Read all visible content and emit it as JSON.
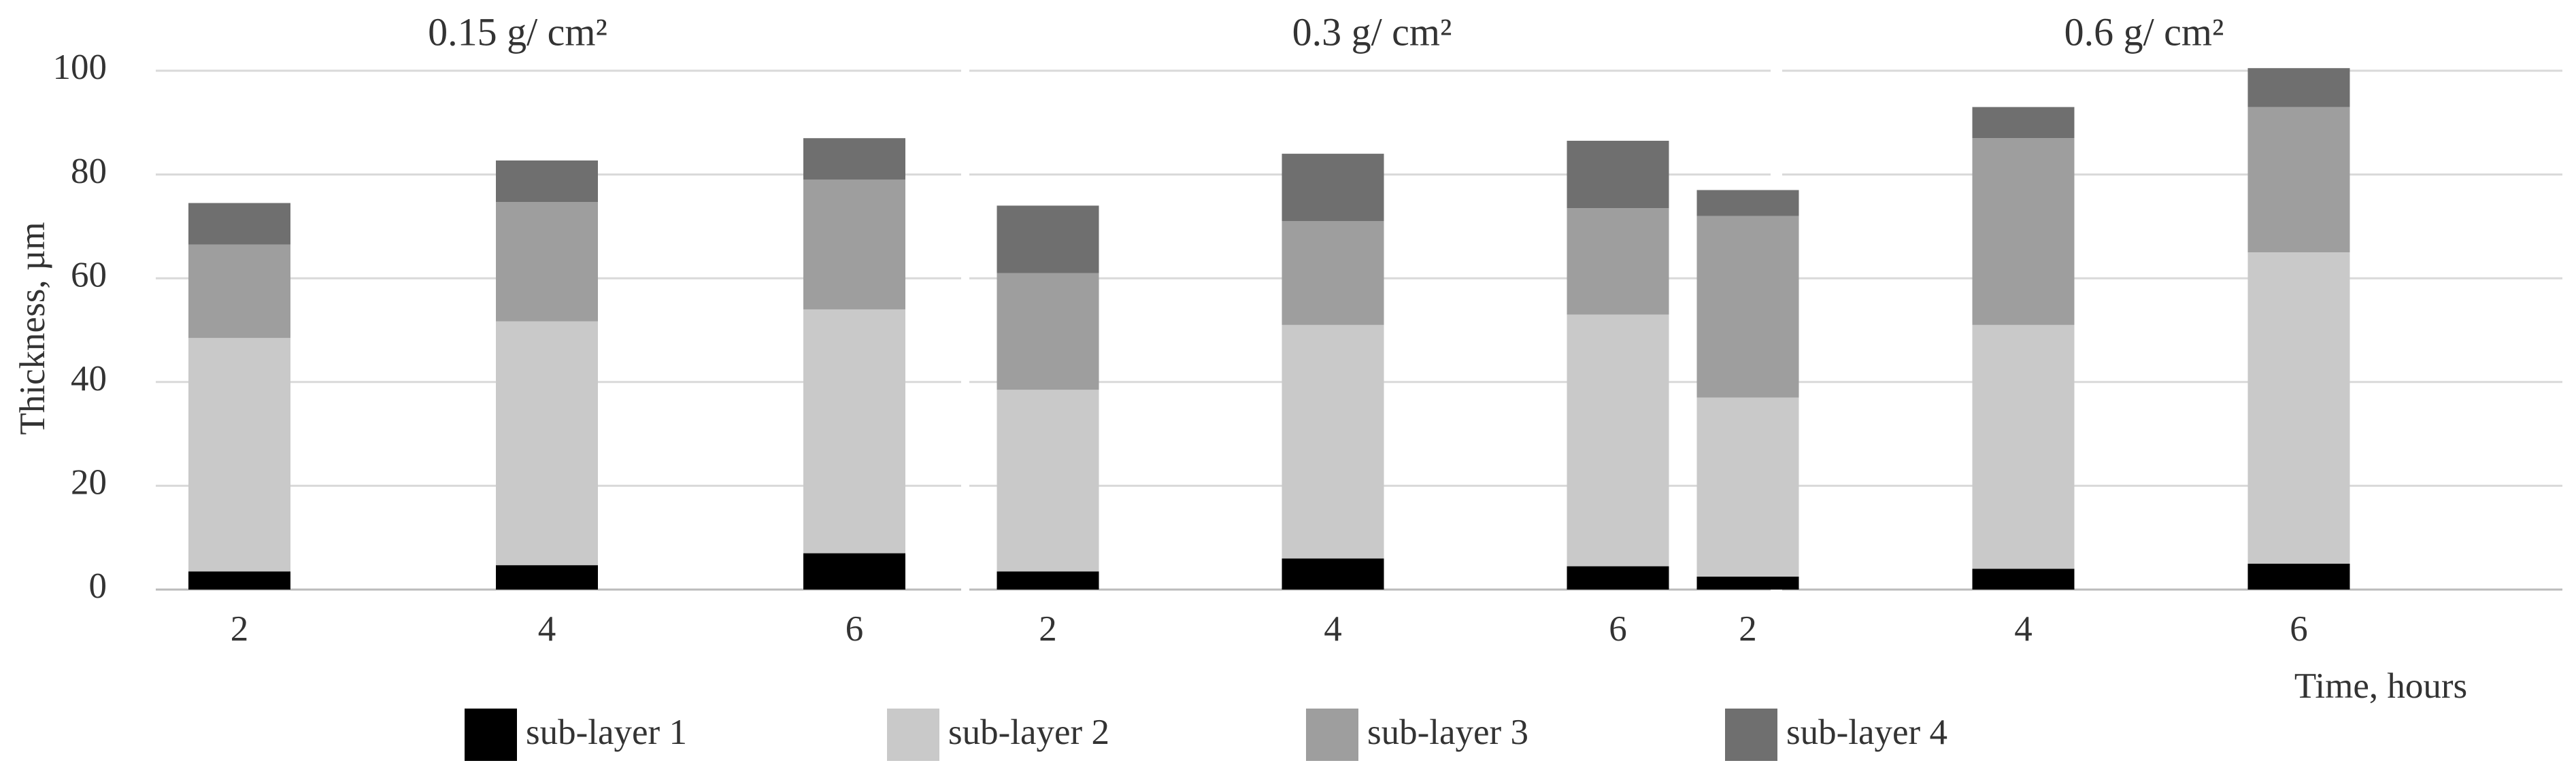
{
  "chart_data": [
    {
      "type": "bar",
      "stacked": true,
      "title": "0.15 g/ cm²",
      "y_label": "Thickness, µm",
      "categories": [
        "2",
        "4",
        "6"
      ],
      "series": [
        {
          "name": "sub-layer 1",
          "color": "#000000",
          "values": [
            3.5,
            4.7,
            7
          ]
        },
        {
          "name": "sub-layer 2",
          "color": "#c9c9c9",
          "values": [
            45,
            47,
            47
          ]
        },
        {
          "name": "sub-layer 3",
          "color": "#9e9e9e",
          "values": [
            18,
            23,
            25
          ]
        },
        {
          "name": "sub-layer 4",
          "color": "#6f6f6f",
          "values": [
            8,
            8,
            8
          ]
        }
      ],
      "ylim": [
        0,
        100
      ],
      "yticks": [
        0,
        20,
        40,
        60,
        80,
        100
      ],
      "grid": true,
      "legend": "bottom"
    },
    {
      "type": "bar",
      "stacked": true,
      "title": "0.3 g/ cm²",
      "categories": [
        "2",
        "4",
        "6"
      ],
      "series": [
        {
          "color": "#000000",
          "values": [
            3.5,
            6,
            4.5
          ]
        },
        {
          "color": "#c9c9c9",
          "values": [
            35,
            45,
            48.5
          ]
        },
        {
          "color": "#9e9e9e",
          "values": [
            22.5,
            20,
            20.5
          ]
        },
        {
          "color": "#6f6f6f",
          "values": [
            13,
            13,
            13
          ]
        }
      ],
      "ylim": [
        0,
        100
      ],
      "yticks": [
        0,
        20,
        40,
        60,
        80,
        100
      ],
      "grid": true
    },
    {
      "type": "bar",
      "stacked": true,
      "title": "0.6 g/ cm²",
      "x_label": "Time, hours",
      "categories": [
        "2",
        "4",
        "6"
      ],
      "series": [
        {
          "color": "#000000",
          "values": [
            2.5,
            4,
            5
          ]
        },
        {
          "color": "#c9c9c9",
          "values": [
            34.5,
            47,
            60
          ]
        },
        {
          "color": "#9e9e9e",
          "values": [
            35,
            36,
            28
          ]
        },
        {
          "color": "#6f6f6f",
          "values": [
            5,
            6,
            7.5
          ]
        }
      ],
      "ylim": [
        0,
        100
      ],
      "yticks": [
        0,
        20,
        40,
        60,
        80,
        100
      ],
      "grid": true
    }
  ]
}
